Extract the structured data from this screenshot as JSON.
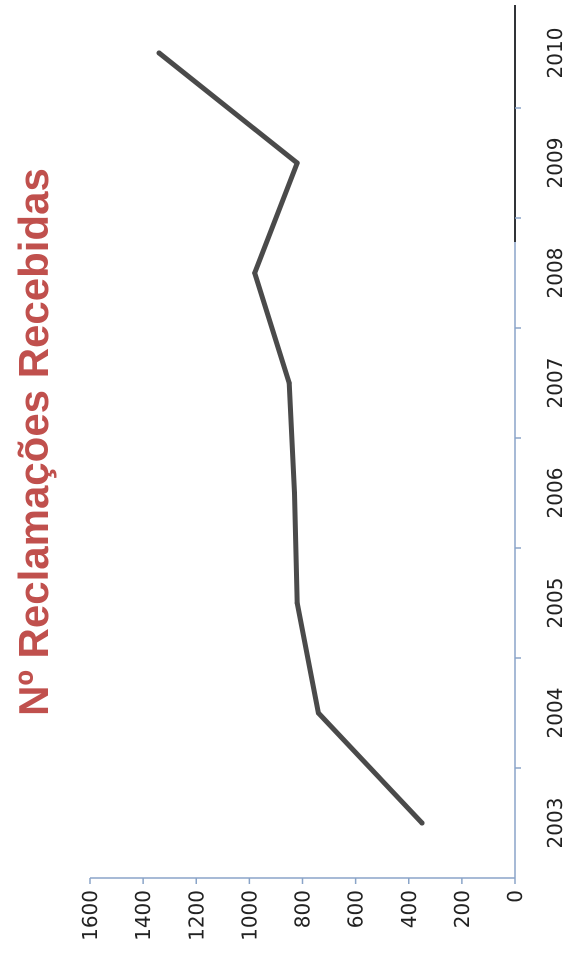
{
  "chart_data": {
    "type": "line",
    "orientation": "rotated-90",
    "title": "Nº Reclamações Recebidas",
    "categories": [
      "2003",
      "2004",
      "2005",
      "2006",
      "2007",
      "2008",
      "2009",
      "2010"
    ],
    "series": [
      {
        "values": [
          350,
          740,
          820,
          830,
          850,
          980,
          820,
          1340
        ]
      }
    ],
    "yticks": [
      "0",
      "200",
      "400",
      "600",
      "800",
      "1000",
      "1200",
      "1400",
      "1600"
    ],
    "ylim": [
      0,
      1600
    ],
    "grid": false,
    "colors": {
      "title": "#c0504d",
      "line": "#4a4a4a",
      "axis": "#8aa4c8"
    }
  }
}
